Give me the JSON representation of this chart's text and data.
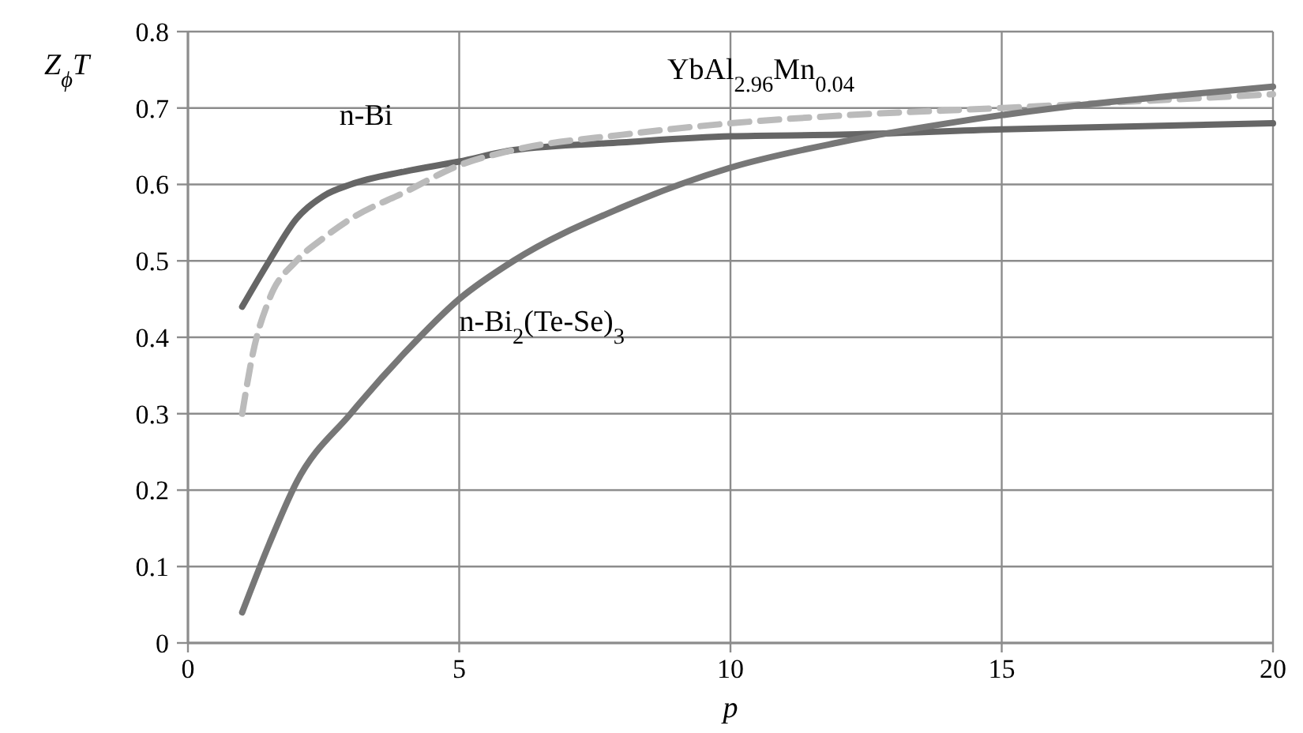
{
  "chart_data": {
    "type": "line",
    "xlabel": "p",
    "ylabel": "Z$_{ϕ}$T",
    "xlim": [
      0,
      20
    ],
    "ylim": [
      0,
      0.8
    ],
    "xticks": [
      0,
      5,
      10,
      15,
      20
    ],
    "yticks": [
      0,
      0.1,
      0.2,
      0.3,
      0.4,
      0.5,
      0.6,
      0.7,
      0.8
    ],
    "grid": true,
    "series": [
      {
        "name": "n-Bi",
        "color": "#666666",
        "line_style": "solid",
        "x": [
          1,
          1.5,
          2,
          2.5,
          3,
          4,
          5,
          6,
          8,
          10,
          12,
          15,
          20
        ],
        "values": [
          0.44,
          0.5,
          0.555,
          0.585,
          0.6,
          0.617,
          0.63,
          0.645,
          0.655,
          0.663,
          0.665,
          0.672,
          0.68
        ]
      },
      {
        "name": "YbAl$_{2.96}$Mn$_{0.04}$",
        "color": "#bbbbbb",
        "line_style": "dashed",
        "x": [
          1,
          1.2,
          1.5,
          2,
          2.5,
          3,
          4,
          5,
          6,
          8,
          10,
          12,
          15,
          20
        ],
        "values": [
          0.3,
          0.38,
          0.45,
          0.5,
          0.53,
          0.555,
          0.59,
          0.625,
          0.645,
          0.665,
          0.68,
          0.69,
          0.7,
          0.718
        ]
      },
      {
        "name": "n-Bi$_{2}$(Te-Se)$_{3}$",
        "color": "#777777",
        "line_style": "solid",
        "x": [
          1,
          1.5,
          2,
          3,
          4,
          5,
          6,
          8,
          10,
          12,
          14,
          16,
          18,
          20
        ],
        "values": [
          0.04,
          0.13,
          0.21,
          0.3,
          0.38,
          0.45,
          0.5,
          0.57,
          0.622,
          0.655,
          0.68,
          0.7,
          0.715,
          0.728
        ]
      }
    ]
  }
}
